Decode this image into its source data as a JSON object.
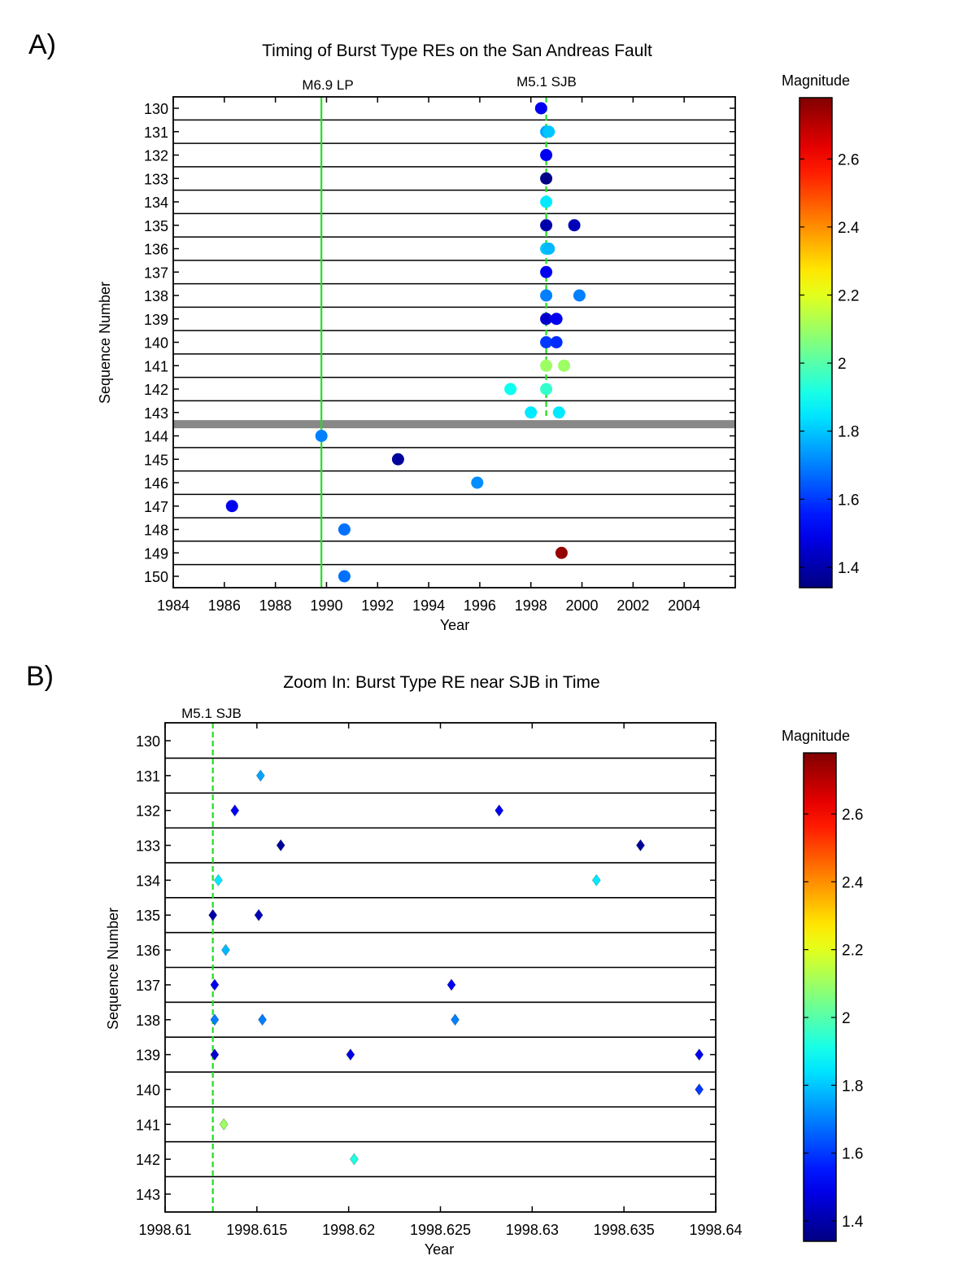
{
  "chart_data": [
    {
      "panel_label": "A)",
      "type": "scatter",
      "title": "Timing of Burst Type REs on the San Andreas Fault",
      "xlabel": "Year",
      "ylabel": "Sequence Number",
      "xlim": [
        1984,
        2006
      ],
      "x_ticks": [
        1984,
        1986,
        1988,
        1990,
        1992,
        1994,
        1996,
        1998,
        2000,
        2002,
        2004
      ],
      "y_ticks": [
        130,
        131,
        132,
        133,
        134,
        135,
        136,
        137,
        138,
        139,
        140,
        141,
        142,
        143,
        144,
        145,
        146,
        147,
        148,
        149,
        150
      ],
      "marker": "circle",
      "grid": "horizontal separators between sequences",
      "separator_band_between": [
        143,
        144
      ],
      "event_lines": [
        {
          "label": "M6.9 LP",
          "x": 1989.8,
          "style": "solid",
          "color": "#22dd22"
        },
        {
          "label": "M5.1 SJB",
          "x": 1998.6,
          "style": "dashed",
          "color": "#22dd22",
          "y_range": [
            130,
            143
          ]
        }
      ],
      "colorbar": {
        "label": "Magnitude",
        "range": [
          1.34,
          2.78
        ],
        "ticks": [
          1.4,
          1.6,
          1.8,
          2,
          2.2,
          2.4,
          2.6
        ],
        "colormap": "jet"
      },
      "points": [
        {
          "x": 1998.4,
          "y": 130,
          "mag": 1.5
        },
        {
          "x": 1998.6,
          "y": 131,
          "mag": 1.75
        },
        {
          "x": 1998.7,
          "y": 131,
          "mag": 1.8
        },
        {
          "x": 1998.6,
          "y": 132,
          "mag": 1.5
        },
        {
          "x": 1998.6,
          "y": 133,
          "mag": 1.35
        },
        {
          "x": 1998.6,
          "y": 134,
          "mag": 1.85
        },
        {
          "x": 1998.6,
          "y": 135,
          "mag": 1.4
        },
        {
          "x": 1999.7,
          "y": 135,
          "mag": 1.42
        },
        {
          "x": 1998.6,
          "y": 136,
          "mag": 1.8
        },
        {
          "x": 1998.7,
          "y": 136,
          "mag": 1.78
        },
        {
          "x": 1998.6,
          "y": 137,
          "mag": 1.5
        },
        {
          "x": 1998.6,
          "y": 138,
          "mag": 1.7
        },
        {
          "x": 1999.9,
          "y": 138,
          "mag": 1.7
        },
        {
          "x": 1998.6,
          "y": 139,
          "mag": 1.45
        },
        {
          "x": 1999.0,
          "y": 139,
          "mag": 1.5
        },
        {
          "x": 1998.6,
          "y": 140,
          "mag": 1.6
        },
        {
          "x": 1999.0,
          "y": 140,
          "mag": 1.58
        },
        {
          "x": 1998.6,
          "y": 141,
          "mag": 2.1
        },
        {
          "x": 1999.3,
          "y": 141,
          "mag": 2.1
        },
        {
          "x": 1997.2,
          "y": 142,
          "mag": 1.9
        },
        {
          "x": 1998.6,
          "y": 142,
          "mag": 1.95
        },
        {
          "x": 1998.0,
          "y": 143,
          "mag": 1.85
        },
        {
          "x": 1999.1,
          "y": 143,
          "mag": 1.85
        },
        {
          "x": 1989.8,
          "y": 144,
          "mag": 1.7
        },
        {
          "x": 1992.8,
          "y": 145,
          "mag": 1.38
        },
        {
          "x": 1995.9,
          "y": 146,
          "mag": 1.72
        },
        {
          "x": 1986.3,
          "y": 147,
          "mag": 1.5
        },
        {
          "x": 1990.7,
          "y": 148,
          "mag": 1.68
        },
        {
          "x": 1999.2,
          "y": 149,
          "mag": 2.75
        },
        {
          "x": 1990.7,
          "y": 150,
          "mag": 1.68
        }
      ]
    },
    {
      "panel_label": "B)",
      "type": "scatter",
      "title": "Zoom In: Burst Type RE near SJB in Time",
      "xlabel": "Year",
      "ylabel": "Sequence Number",
      "xlim": [
        1998.61,
        1998.64
      ],
      "x_ticks": [
        "1998.61",
        "1998.615",
        "1998.62",
        "1998.625",
        "1998.63",
        "1998.635",
        "1998.64"
      ],
      "y_ticks": [
        130,
        131,
        132,
        133,
        134,
        135,
        136,
        137,
        138,
        139,
        140,
        141,
        142,
        143
      ],
      "marker": "diamond",
      "grid": "horizontal separators between sequences",
      "event_lines": [
        {
          "label": "M5.1 SJB",
          "x": 1998.6126,
          "style": "dashed",
          "color": "#22dd22"
        }
      ],
      "colorbar": {
        "label": "Magnitude",
        "range": [
          1.34,
          2.78
        ],
        "ticks": [
          1.4,
          1.6,
          1.8,
          2,
          2.2,
          2.4,
          2.6
        ],
        "colormap": "jet"
      },
      "points": [
        {
          "x": 1998.6152,
          "y": 131,
          "mag": 1.75
        },
        {
          "x": 1998.6138,
          "y": 132,
          "mag": 1.5
        },
        {
          "x": 1998.6282,
          "y": 132,
          "mag": 1.5
        },
        {
          "x": 1998.6163,
          "y": 133,
          "mag": 1.38
        },
        {
          "x": 1998.6359,
          "y": 133,
          "mag": 1.38
        },
        {
          "x": 1998.6129,
          "y": 134,
          "mag": 1.85
        },
        {
          "x": 1998.6335,
          "y": 134,
          "mag": 1.85
        },
        {
          "x": 1998.6126,
          "y": 135,
          "mag": 1.4
        },
        {
          "x": 1998.6151,
          "y": 135,
          "mag": 1.42
        },
        {
          "x": 1998.6133,
          "y": 136,
          "mag": 1.78
        },
        {
          "x": 1998.6127,
          "y": 137,
          "mag": 1.5
        },
        {
          "x": 1998.6256,
          "y": 137,
          "mag": 1.5
        },
        {
          "x": 1998.6127,
          "y": 138,
          "mag": 1.7
        },
        {
          "x": 1998.6153,
          "y": 138,
          "mag": 1.7
        },
        {
          "x": 1998.6258,
          "y": 138,
          "mag": 1.7
        },
        {
          "x": 1998.6127,
          "y": 139,
          "mag": 1.45
        },
        {
          "x": 1998.6201,
          "y": 139,
          "mag": 1.48
        },
        {
          "x": 1998.6391,
          "y": 139,
          "mag": 1.5
        },
        {
          "x": 1998.6391,
          "y": 140,
          "mag": 1.6
        },
        {
          "x": 1998.6132,
          "y": 141,
          "mag": 2.1
        },
        {
          "x": 1998.6203,
          "y": 142,
          "mag": 1.92
        }
      ]
    }
  ]
}
